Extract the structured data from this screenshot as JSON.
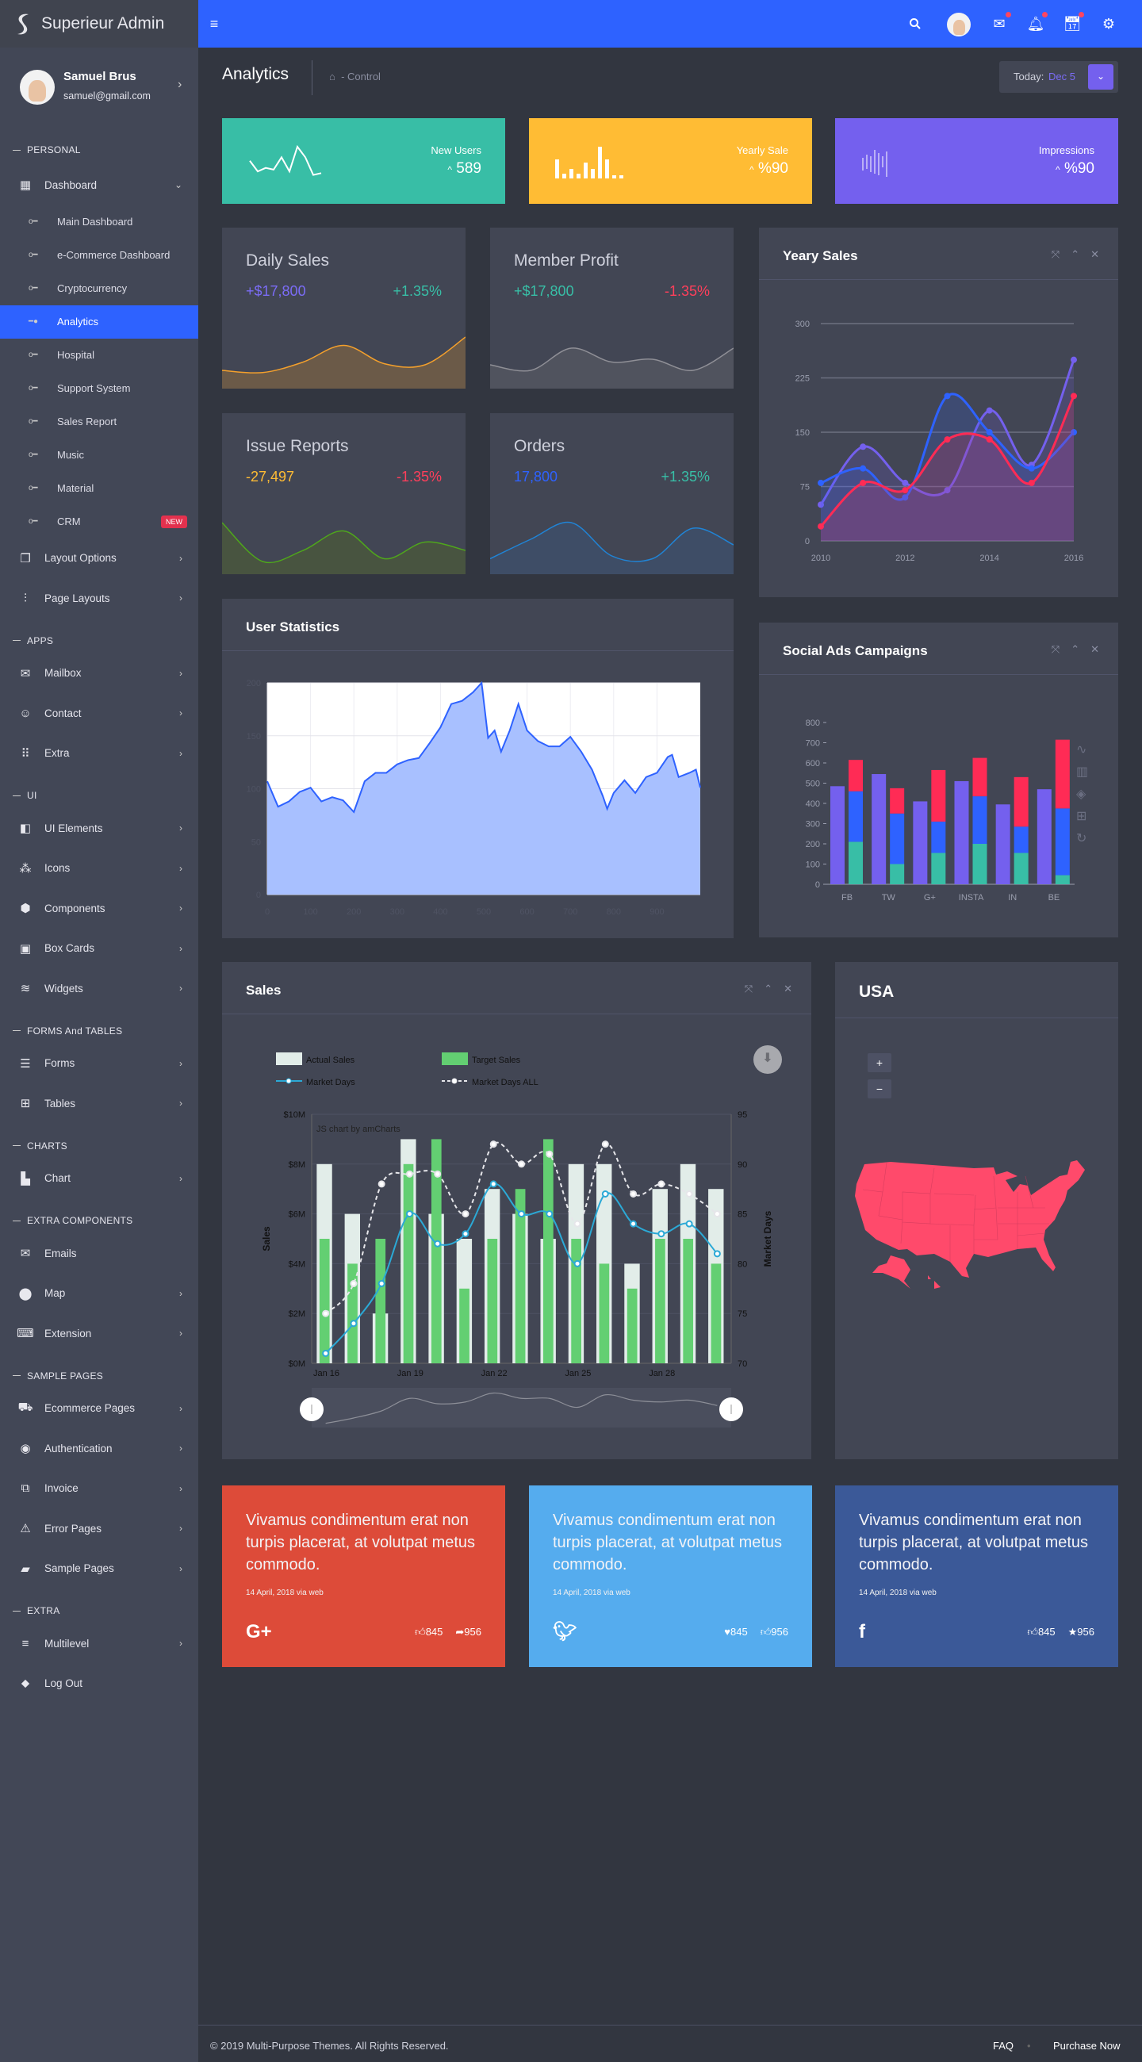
{
  "app": {
    "title": "Superieur Admin"
  },
  "user": {
    "name": "Samuel Brus",
    "email": "samuel@gmail.com"
  },
  "sidebar": [
    {
      "type": "section",
      "label": "PERSONAL"
    },
    {
      "type": "item",
      "label": "Dashboard",
      "icon": "dashboard-icon",
      "glyph": "▦",
      "chev": "⌄"
    },
    {
      "type": "sub",
      "label": "Main Dashboard"
    },
    {
      "type": "sub",
      "label": "e-Commerce Dashboard"
    },
    {
      "type": "sub",
      "label": "Cryptocurrency"
    },
    {
      "type": "sub",
      "label": "Analytics",
      "active": true
    },
    {
      "type": "sub",
      "label": "Hospital"
    },
    {
      "type": "sub",
      "label": "Support System"
    },
    {
      "type": "sub",
      "label": "Sales Report"
    },
    {
      "type": "sub",
      "label": "Music"
    },
    {
      "type": "sub",
      "label": "Material"
    },
    {
      "type": "sub",
      "label": "CRM",
      "badge": "NEW"
    },
    {
      "type": "item",
      "label": "Layout Options",
      "icon": "layers-icon",
      "glyph": "❐",
      "chev": "›"
    },
    {
      "type": "item",
      "label": "Page Layouts",
      "icon": "sliders-icon",
      "glyph": "⫶",
      "chev": "›"
    },
    {
      "type": "section",
      "label": "APPS"
    },
    {
      "type": "item",
      "label": "Mailbox",
      "icon": "mailbox-icon",
      "glyph": "✉",
      "chev": "›"
    },
    {
      "type": "item",
      "label": "Contact",
      "icon": "contact-icon",
      "glyph": "☺",
      "chev": "›"
    },
    {
      "type": "item",
      "label": "Extra",
      "icon": "grid-icon",
      "glyph": "⠿",
      "chev": "›"
    },
    {
      "type": "section",
      "label": "UI"
    },
    {
      "type": "item",
      "label": "UI Elements",
      "icon": "ui-elements-icon",
      "glyph": "◧",
      "chev": "›"
    },
    {
      "type": "item",
      "label": "Icons",
      "icon": "icons-icon",
      "glyph": "⁂",
      "chev": "›"
    },
    {
      "type": "item",
      "label": "Components",
      "icon": "box-icon",
      "glyph": "⬢",
      "chev": "›"
    },
    {
      "type": "item",
      "label": "Box Cards",
      "icon": "box-cards-icon",
      "glyph": "▣",
      "chev": "›"
    },
    {
      "type": "item",
      "label": "Widgets",
      "icon": "waves-icon",
      "glyph": "≋",
      "chev": "›"
    },
    {
      "type": "section",
      "label": "FORMS And TABLES"
    },
    {
      "type": "item",
      "label": "Forms",
      "icon": "forms-icon",
      "glyph": "☰",
      "chev": "›"
    },
    {
      "type": "item",
      "label": "Tables",
      "icon": "table-icon",
      "glyph": "⊞",
      "chev": "›"
    },
    {
      "type": "section",
      "label": "CHARTS"
    },
    {
      "type": "item",
      "label": "Chart",
      "icon": "bar-chart-icon",
      "glyph": "▙",
      "chev": "›"
    },
    {
      "type": "section",
      "label": "EXTRA COMPONENTS"
    },
    {
      "type": "item",
      "label": "Emails",
      "icon": "email-icon",
      "glyph": "✉",
      "chev": ""
    },
    {
      "type": "item",
      "label": "Map",
      "icon": "map-pin-icon",
      "glyph": "⬤",
      "chev": "›"
    },
    {
      "type": "item",
      "label": "Extension",
      "icon": "keyboard-icon",
      "glyph": "⌨",
      "chev": "›"
    },
    {
      "type": "section",
      "label": "SAMPLE PAGES"
    },
    {
      "type": "item",
      "label": "Ecommerce Pages",
      "icon": "cart-icon",
      "glyph": "⛟",
      "chev": "›"
    },
    {
      "type": "item",
      "label": "Authentication",
      "icon": "user-circle-icon",
      "glyph": "◉",
      "chev": "›"
    },
    {
      "type": "item",
      "label": "Invoice",
      "icon": "invoice-icon",
      "glyph": "⧉",
      "chev": "›"
    },
    {
      "type": "item",
      "label": "Error Pages",
      "icon": "error-icon",
      "glyph": "⚠",
      "chev": "›"
    },
    {
      "type": "item",
      "label": "Sample Pages",
      "icon": "file-icon",
      "glyph": "▰",
      "chev": "›"
    },
    {
      "type": "section",
      "label": "EXTRA"
    },
    {
      "type": "item",
      "label": "Multilevel",
      "icon": "multilevel-icon",
      "glyph": "≡",
      "chev": "›"
    },
    {
      "type": "item",
      "label": "Log Out",
      "icon": "logout-icon",
      "glyph": "⬥",
      "chev": ""
    }
  ],
  "page": {
    "title": "Analytics",
    "breadcrumb": "- Control",
    "today_label": "Today:",
    "today_value": "Dec 5"
  },
  "stats": [
    {
      "label": "New Users",
      "value": "589",
      "arrow": "^",
      "color": "#38bea6",
      "spark": [
        5,
        2,
        3,
        2.5,
        6,
        2,
        9,
        6,
        1,
        1.5
      ],
      "spark_type": "line"
    },
    {
      "label": "Yearly Sale",
      "value": "%90",
      "arrow": "^",
      "color": "#ffbc34",
      "spark": [
        6,
        1.5,
        3,
        1.5,
        5,
        3,
        10,
        6,
        1,
        1
      ],
      "spark_type": "bar"
    },
    {
      "label": "Impressions",
      "value": "%90",
      "arrow": "^",
      "color": "#7460ee",
      "spark": [
        4,
        6,
        5,
        9,
        7,
        5,
        8
      ],
      "spark_type": "tick"
    }
  ],
  "small_cards": [
    {
      "title": "Daily Sales",
      "a": "+$17,800",
      "a_color": "#7b6cf6",
      "b": "+1.35%",
      "b_color": "#38bea6",
      "line": "#f4a02c",
      "fill": "#6b5a48",
      "wave": [
        3,
        2.6,
        4.5,
        7.5,
        4.2,
        4,
        9
      ]
    },
    {
      "title": "Member Profit",
      "a": "+$17,800",
      "a_color": "#38bea6",
      "b": "-1.35%",
      "b_color": "#ff3f5b",
      "line": "#8f8f96",
      "fill": "#50535e",
      "wave": [
        4,
        3,
        7,
        4.5,
        5,
        3,
        7
      ]
    },
    {
      "title": "Issue Reports",
      "a": "-27,497",
      "a_color": "#ffbc34",
      "b": "-1.35%",
      "b_color": "#ff3f5b",
      "line": "#4fa71b",
      "fill": "#485440",
      "wave": [
        9,
        2,
        4,
        7.5,
        2.5,
        5.5,
        4
      ]
    },
    {
      "title": "Orders",
      "a": "17,800",
      "a_color": "#2e62ff",
      "b": "+1.35%",
      "b_color": "#38bea6",
      "line": "#2084d6",
      "fill": "#3e4d66",
      "wave": [
        2.5,
        6,
        9,
        3,
        2.5,
        8,
        5
      ]
    }
  ],
  "chart_data": [
    {
      "id": "yeary",
      "type": "line",
      "title": "Yeary Sales",
      "x": [
        2010,
        2011,
        2012,
        2013,
        2014,
        2015,
        2016
      ],
      "xticks": [
        2010,
        2012,
        2014,
        2016
      ],
      "ylim": [
        0,
        300
      ],
      "yticks": [
        0,
        75,
        150,
        225,
        300
      ],
      "grid": true,
      "series": [
        {
          "color": "#7460ee",
          "values": [
            50,
            130,
            80,
            70,
            180,
            105,
            250
          ]
        },
        {
          "color": "#2e62ff",
          "values": [
            80,
            100,
            60,
            200,
            150,
            100,
            150
          ]
        },
        {
          "color": "#ff2b55",
          "values": [
            20,
            80,
            70,
            140,
            140,
            80,
            200
          ]
        }
      ]
    },
    {
      "id": "userstats",
      "type": "area",
      "title": "User Statistics",
      "xlim": [
        0,
        1000
      ],
      "ylim": [
        0,
        200
      ],
      "xticks": [
        0,
        100,
        200,
        300,
        400,
        500,
        600,
        700,
        800,
        900
      ],
      "yticks": [
        0,
        50,
        100,
        150,
        200
      ],
      "grid": true,
      "line": "#2e62ff",
      "fill": "#a8c0ff",
      "points": [
        [
          0,
          107
        ],
        [
          25,
          83
        ],
        [
          50,
          88
        ],
        [
          75,
          97
        ],
        [
          100,
          101
        ],
        [
          125,
          88
        ],
        [
          150,
          92
        ],
        [
          175,
          89
        ],
        [
          200,
          78
        ],
        [
          225,
          107
        ],
        [
          250,
          115
        ],
        [
          275,
          115
        ],
        [
          300,
          123
        ],
        [
          325,
          127
        ],
        [
          350,
          129
        ],
        [
          375,
          143
        ],
        [
          400,
          158
        ],
        [
          425,
          180
        ],
        [
          450,
          183
        ],
        [
          475,
          191
        ],
        [
          495,
          200
        ],
        [
          510,
          148
        ],
        [
          525,
          155
        ],
        [
          540,
          135
        ],
        [
          560,
          155
        ],
        [
          580,
          180
        ],
        [
          600,
          155
        ],
        [
          625,
          145
        ],
        [
          650,
          140
        ],
        [
          675,
          140
        ],
        [
          700,
          149
        ],
        [
          725,
          135
        ],
        [
          750,
          118
        ],
        [
          775,
          93
        ],
        [
          785,
          81
        ],
        [
          800,
          96
        ],
        [
          825,
          108
        ],
        [
          850,
          96
        ],
        [
          875,
          111
        ],
        [
          900,
          115
        ],
        [
          925,
          130
        ],
        [
          935,
          132
        ],
        [
          950,
          111
        ],
        [
          975,
          115
        ],
        [
          990,
          118
        ],
        [
          1000,
          101
        ]
      ]
    },
    {
      "id": "socialads",
      "type": "bar",
      "title": "Social Ads Campaigns",
      "categories": [
        "FB",
        "TW",
        "G+",
        "INSTA",
        "IN",
        "BE"
      ],
      "ylim": [
        0,
        800
      ],
      "yticks": [
        0,
        100,
        200,
        300,
        400,
        500,
        600,
        700,
        800
      ],
      "single": {
        "color": "#7460ee",
        "values": [
          485,
          545,
          410,
          510,
          395,
          470
        ]
      },
      "stacked": [
        {
          "color": "#38bea6",
          "values": [
            210,
            100,
            155,
            200,
            155,
            45
          ]
        },
        {
          "color": "#2e62ff",
          "values": [
            250,
            250,
            155,
            235,
            130,
            330
          ]
        },
        {
          "color": "#ff2b55",
          "values": [
            155,
            125,
            255,
            190,
            245,
            340
          ]
        }
      ]
    },
    {
      "id": "sales",
      "type": "bar-line",
      "title": "Sales",
      "credit": "JS chart by amCharts",
      "categories": [
        "Jan 16",
        "Jan 17",
        "Jan 18",
        "Jan 19",
        "Jan 20",
        "Jan 21",
        "Jan 22",
        "Jan 23",
        "Jan 24",
        "Jan 25",
        "Jan 26",
        "Jan 27",
        "Jan 28",
        "Jan 29",
        "Jan 30"
      ],
      "xticks": [
        "Jan 16",
        "Jan 19",
        "Jan 22",
        "Jan 25",
        "Jan 28"
      ],
      "ylabel": "Sales",
      "y2label": "Market Days",
      "ylim": [
        0,
        10
      ],
      "yticks": [
        "$0M",
        "$2M",
        "$4M",
        "$6M",
        "$8M",
        "$10M"
      ],
      "y2lim": [
        70,
        95
      ],
      "y2ticks": [
        70,
        75,
        80,
        85,
        90,
        95
      ],
      "series": [
        {
          "name": "Actual Sales",
          "kind": "bar",
          "color": "#e2ede9",
          "values": [
            8,
            6,
            2,
            9,
            6,
            5,
            7,
            6,
            5,
            8,
            8,
            4,
            7,
            8,
            7
          ]
        },
        {
          "name": "Target Sales",
          "kind": "bar",
          "color": "#63cf72",
          "values": [
            5,
            4,
            5,
            8,
            9,
            3,
            5,
            7,
            9,
            5,
            4,
            3,
            5,
            5,
            4
          ]
        },
        {
          "name": "Market Days",
          "kind": "line",
          "color": "#2ba9d6",
          "values": [
            71,
            74,
            78,
            85,
            82,
            83,
            88,
            85,
            85,
            80,
            87,
            84,
            83,
            84,
            81
          ]
        },
        {
          "name": "Market Days ALL",
          "kind": "dashed",
          "color": "#e6e6ea",
          "values": [
            75,
            78,
            88,
            89,
            89,
            85,
            92,
            90,
            91,
            84,
            92,
            87,
            88,
            87,
            85
          ]
        }
      ]
    }
  ],
  "usa": {
    "title": "USA",
    "zoom_in": "+",
    "zoom_out": "−",
    "fill": "#ff4a6b"
  },
  "social": [
    {
      "text": "Vivamus condimentum erat non turpis placerat, at volutpat metus commodo.",
      "date": "14 April, 2018 via web",
      "bg": "#dd4b39",
      "brand": "G+",
      "icon": "google-plus-icon",
      "c1_icon": "thumbs-up-icon",
      "c1_glyph": "👍︎",
      "c1": "845",
      "c2_icon": "share-icon",
      "c2_glyph": "➦",
      "c2": "956"
    },
    {
      "text": "Vivamus condimentum erat non turpis placerat, at volutpat metus commodo.",
      "date": "14 April, 2018 via web",
      "bg": "#55acee",
      "brand": "🐦︎",
      "icon": "twitter-icon",
      "c1_icon": "heart-icon",
      "c1_glyph": "♥",
      "c1": "845",
      "c2_icon": "thumbs-up-icon",
      "c2_glyph": "👍︎",
      "c2": "956"
    },
    {
      "text": "Vivamus condimentum erat non turpis placerat, at volutpat metus commodo.",
      "date": "14 April, 2018 via web",
      "bg": "#3b5998",
      "brand": "f",
      "icon": "facebook-icon",
      "c1_icon": "thumbs-up-icon",
      "c1_glyph": "👍︎",
      "c1": "845",
      "c2_icon": "star-icon",
      "c2_glyph": "★",
      "c2": "956"
    }
  ],
  "footer": {
    "copyright": "© 2019 Multi-Purpose Themes. All Rights Reserved.",
    "faq": "FAQ",
    "purchase": "Purchase Now"
  }
}
